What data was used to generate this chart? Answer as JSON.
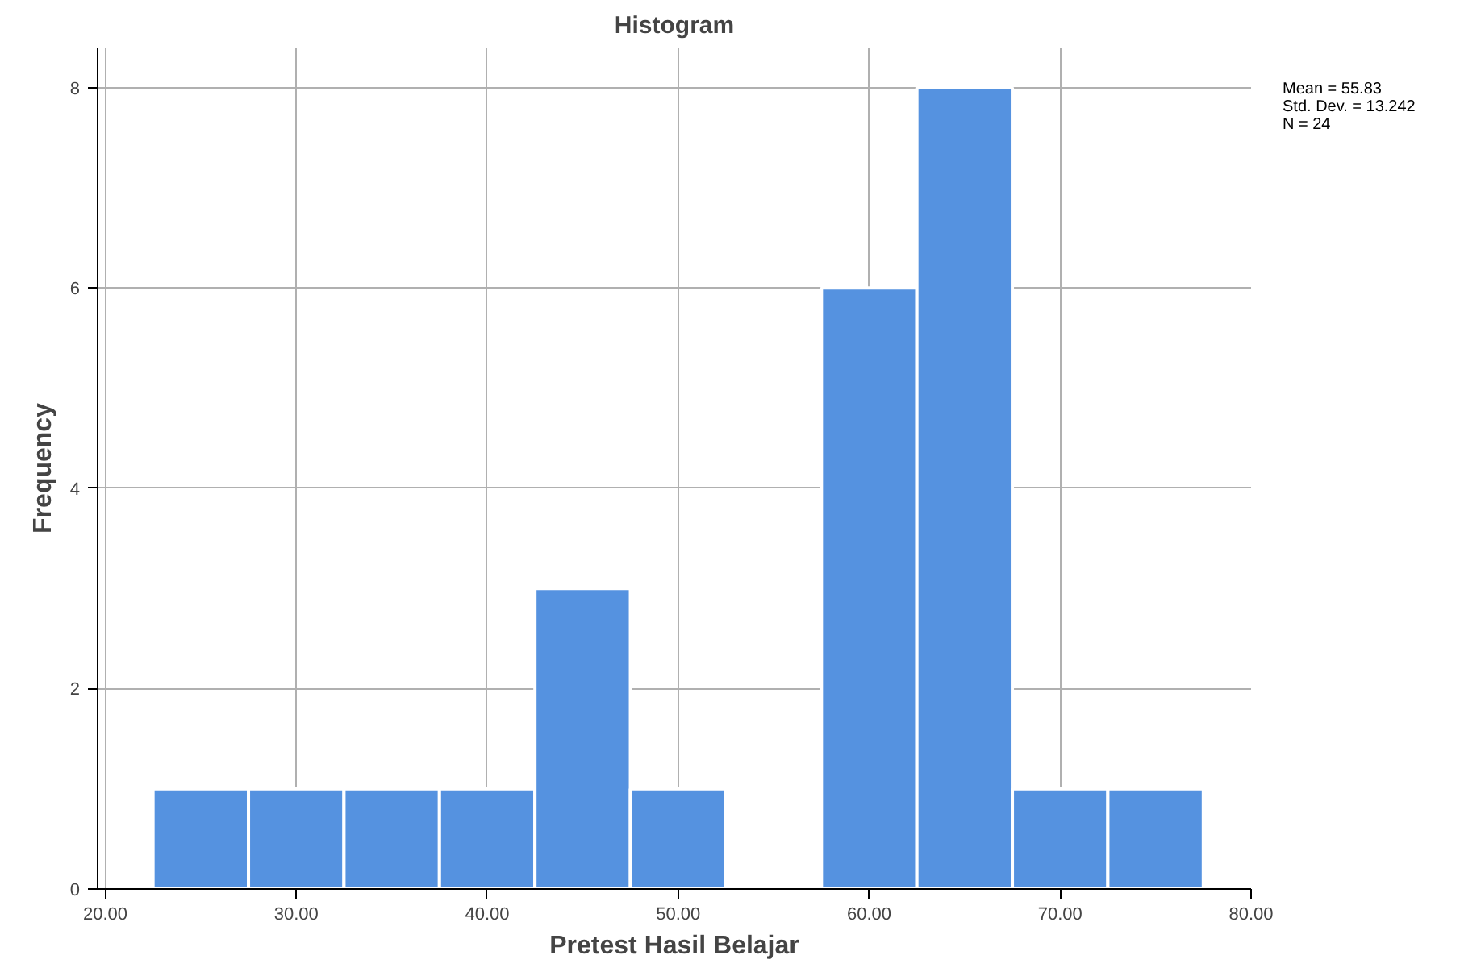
{
  "chart_data": {
    "type": "histogram",
    "title": "Histogram",
    "xlabel": "Pretest Hasil Belajar",
    "ylabel": "Frequency",
    "bins": [
      22.5,
      27.5,
      32.5,
      37.5,
      42.5,
      47.5,
      52.5,
      57.5,
      62.5,
      67.5,
      72.5,
      77.5
    ],
    "values": [
      1,
      1,
      1,
      1,
      3,
      1,
      0,
      6,
      8,
      1,
      1
    ],
    "color": "#5592e0",
    "xlim": [
      19.6,
      80
    ],
    "ylim": [
      0,
      8.4
    ],
    "xticks": [
      {
        "value": 20,
        "label": "20.00"
      },
      {
        "value": 30,
        "label": "30.00"
      },
      {
        "value": 40,
        "label": "40.00"
      },
      {
        "value": 50,
        "label": "50.00"
      },
      {
        "value": 60,
        "label": "60.00"
      },
      {
        "value": 70,
        "label": "70.00"
      },
      {
        "value": 80,
        "label": "80.00"
      }
    ],
    "yticks": [
      0,
      2,
      4,
      6,
      8
    ],
    "grid": true,
    "annotations": [
      "Mean = 55.83",
      "Std. Dev. = 13.242",
      "N = 24"
    ]
  }
}
